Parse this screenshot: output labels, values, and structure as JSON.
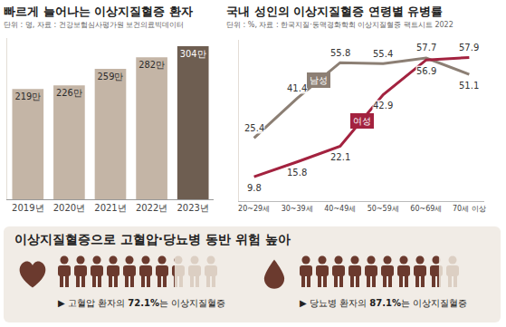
{
  "chart_data": [
    {
      "type": "bar",
      "title": "빠르게 늘어나는 이상지질혈증 환자",
      "subtitle": "단위 : 명, 자료 : 건강보험심사평가원 보건의료빅데이터",
      "categories": [
        "2019년",
        "2020년",
        "2021년",
        "2022년",
        "2023년"
      ],
      "values": [
        219,
        226,
        259,
        282,
        304
      ],
      "value_labels": [
        "219만",
        "226만",
        "259만",
        "282만",
        "304만"
      ],
      "colors": [
        "#c4b5a6",
        "#c4b5a6",
        "#c4b5a6",
        "#c4b5a6",
        "#6e5e51"
      ],
      "ylim": [
        0,
        320
      ],
      "data_labels": true,
      "tick_labels": "x",
      "grid": false
    },
    {
      "type": "line",
      "title": "국내 성인의 이상지질혈증 연령별 유병률",
      "subtitle": "단위 : %, 자료 : 한국지질·동맥경화학회 이상지질혈증 팩트시트 2022",
      "categories": [
        "20~29세",
        "30~39세",
        "40~49세",
        "50~59세",
        "60~69세",
        "70세 이상"
      ],
      "series": [
        {
          "name": "남성",
          "color": "#8c7f74",
          "values": [
            25.4,
            41.4,
            55.8,
            55.4,
            57.7,
            51.1
          ]
        },
        {
          "name": "여성",
          "color": "#a3223f",
          "values": [
            9.8,
            15.8,
            22.1,
            42.9,
            56.9,
            57.9
          ]
        }
      ],
      "ylim": [
        0,
        65
      ],
      "data_labels": true,
      "tick_labels": "x",
      "grid": false,
      "marker": "none"
    }
  ],
  "infobox": {
    "title": "이상지질혈증으로 고혈압·당뇨병 동반 위험 높아",
    "items": [
      {
        "prefix": "▶ 고혈압 환자의 ",
        "value": 72.1,
        "value_label": "72.1%",
        "suffix": "는 이상지질혈증",
        "color": "#6b3a2e"
      },
      {
        "prefix": "▶ 당뇨병 환자의 ",
        "value": 87.1,
        "value_label": "87.1%",
        "suffix": "는 이상지질혈증",
        "color": "#6b3a2e"
      }
    ]
  }
}
